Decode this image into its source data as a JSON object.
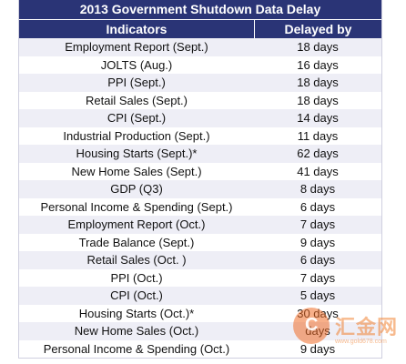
{
  "title": "2013 Government Shutdown Data Delay",
  "columns": {
    "indicator": "Indicators",
    "delay": "Delayed by"
  },
  "rows": [
    {
      "indicator": "Employment Report (Sept.)",
      "delay": "18 days"
    },
    {
      "indicator": "JOLTS (Aug.)",
      "delay": "16 days"
    },
    {
      "indicator": "PPI  (Sept.)",
      "delay": "18 days"
    },
    {
      "indicator": "Retail Sales (Sept.)",
      "delay": "18 days"
    },
    {
      "indicator": "CPI (Sept.)",
      "delay": "14 days"
    },
    {
      "indicator": "Industrial Production (Sept.)",
      "delay": "11 days"
    },
    {
      "indicator": "Housing Starts (Sept.)*",
      "delay": "62 days"
    },
    {
      "indicator": "New Home Sales (Sept.)",
      "delay": "41 days"
    },
    {
      "indicator": "GDP (Q3)",
      "delay": "8 days"
    },
    {
      "indicator": "Personal Income & Spending (Sept.)",
      "delay": "6 days"
    },
    {
      "indicator": "Employment Report (Oct.)",
      "delay": "7 days"
    },
    {
      "indicator": "Trade Balance (Sept.)",
      "delay": "9 days"
    },
    {
      "indicator": "Retail Sales (Oct. )",
      "delay": "6 days"
    },
    {
      "indicator": "PPI (Oct.)",
      "delay": "7 days"
    },
    {
      "indicator": "CPI (Oct.)",
      "delay": "5 days"
    },
    {
      "indicator": "Housing Starts (Oct.)*",
      "delay": "30 days"
    },
    {
      "indicator": "New Home Sales (Oct.)",
      "delay": "  days"
    },
    {
      "indicator": "Personal Income & Spending (Oct.)",
      "delay": "9 days"
    }
  ],
  "watermark": {
    "text": "汇金网",
    "url": "www.gold678.com",
    "letter": "C"
  }
}
